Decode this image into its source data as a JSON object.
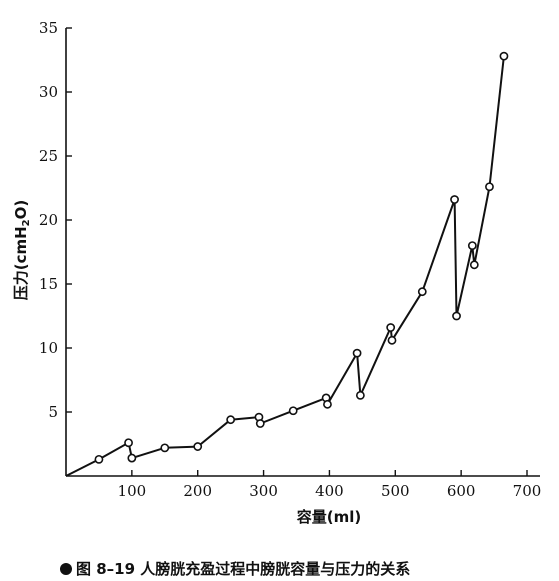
{
  "chart_data": {
    "type": "line",
    "title": "",
    "xlabel": "容量(ml)",
    "ylabel_main": "压力(cmH",
    "ylabel_sub": "2",
    "ylabel_end": "O)",
    "xlim": [
      0,
      700
    ],
    "ylim": [
      0,
      35
    ],
    "x_ticks": [
      100,
      200,
      300,
      400,
      500,
      600,
      700
    ],
    "y_ticks": [
      5,
      10,
      15,
      20,
      25,
      30,
      35
    ],
    "grid": false,
    "series": [
      {
        "points": [
          [
            0,
            0
          ],
          [
            50,
            1.3
          ],
          [
            95,
            2.6
          ],
          [
            100,
            1.4
          ],
          [
            150,
            2.2
          ],
          [
            200,
            2.3
          ],
          [
            250,
            4.4
          ],
          [
            293,
            4.6
          ],
          [
            295,
            4.1
          ],
          [
            345,
            5.1
          ],
          [
            395,
            6.1
          ],
          [
            397,
            5.6
          ],
          [
            442,
            9.6
          ],
          [
            447,
            6.3
          ],
          [
            493,
            11.6
          ],
          [
            495,
            10.6
          ],
          [
            541,
            14.4
          ],
          [
            590,
            21.6
          ],
          [
            593,
            12.5
          ],
          [
            617,
            18.0
          ],
          [
            620,
            16.5
          ],
          [
            643,
            22.6
          ],
          [
            665,
            32.8
          ]
        ]
      }
    ],
    "marker": "open-circle"
  },
  "caption": {
    "text": "图 8–19   人膀胱充盈过程中膀胱容量与压力的关系"
  }
}
